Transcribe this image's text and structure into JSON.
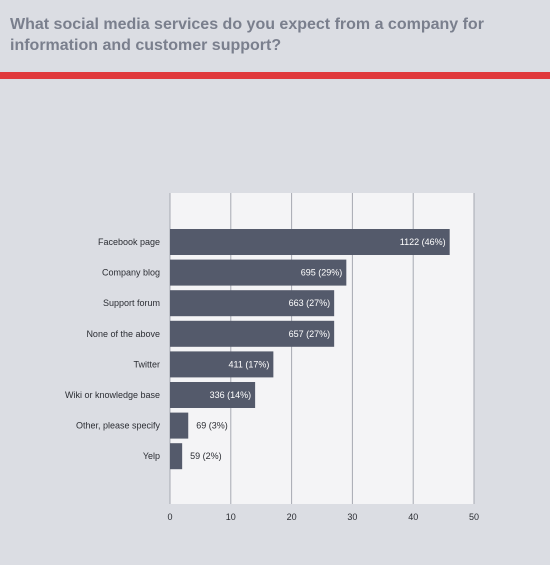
{
  "question": "What social media services do you expect from a company for information and customer support?",
  "colors": {
    "background": "#dbdde3",
    "title": "#7a7f8d",
    "accent_rule": "#e0393c",
    "bar": "#545a6b",
    "plot_background": "#f4f4f6",
    "grid": "#a6a9b2",
    "inside_label": "#ffffff",
    "outside_label": "#2b2d33"
  },
  "chart_data": {
    "type": "bar",
    "orientation": "horizontal",
    "title": "What social media services do you expect from a company for information and customer support?",
    "categories": [
      "Facebook page",
      "Company blog",
      "Support forum",
      "None of the above",
      "Twitter",
      "Wiki or knowledge base",
      "Other, please specify",
      "Yelp"
    ],
    "values": [
      46,
      29,
      27,
      27,
      17,
      14,
      3,
      2
    ],
    "counts": [
      1122,
      695,
      663,
      657,
      411,
      336,
      69,
      59
    ],
    "data_labels": [
      "1122  (46%)",
      "695  (29%)",
      "663  (27%)",
      "657  (27%)",
      "411  (17%)",
      "336  (14%)",
      "69  (3%)",
      "59  (2%)"
    ],
    "xlim": [
      0,
      50
    ],
    "xticks": [
      0,
      10,
      20,
      30,
      40,
      50
    ],
    "xtick_labels": [
      "0",
      "10",
      "20",
      "30",
      "40",
      "50"
    ],
    "xlabel": "",
    "ylabel": "",
    "grid": true,
    "legend": "none"
  }
}
